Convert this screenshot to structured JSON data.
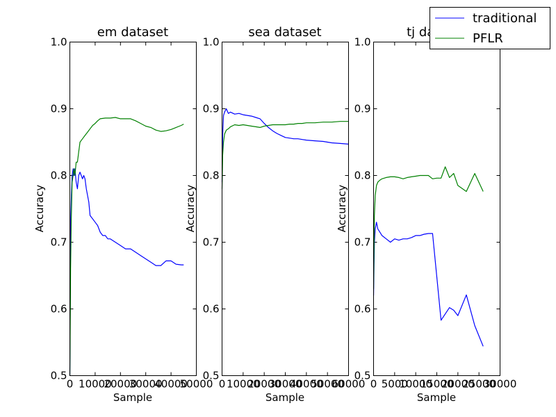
{
  "chart_data": [
    {
      "type": "line",
      "title": "em dataset",
      "xlabel": "Sample",
      "ylabel": "Accuracy",
      "xlim": [
        0,
        50000
      ],
      "ylim": [
        0.5,
        1.0
      ],
      "xticks": [
        0,
        10000,
        20000,
        30000,
        40000,
        50000
      ],
      "xtick_labels": [
        "0",
        "10000",
        "20000",
        "30000",
        "40000",
        "50000"
      ],
      "yticks": [
        0.5,
        0.6,
        0.7,
        0.8,
        0.9,
        1.0
      ],
      "ytick_labels": [
        "0.5",
        "0.6",
        "0.7",
        "0.8",
        "0.9",
        "1.0"
      ],
      "series": [
        {
          "name": "traditional",
          "color": "#0000ff",
          "x": [
            0,
            300,
            600,
            900,
            1300,
            1600,
            2000,
            2500,
            3000,
            3500,
            4000,
            4500,
            5000,
            5500,
            6000,
            6500,
            7000,
            7500,
            8000,
            9000,
            10000,
            11000,
            12000,
            13000,
            14000,
            15000,
            16000,
            18000,
            20000,
            22000,
            24000,
            26000,
            28000,
            30000,
            32000,
            34000,
            36000,
            38000,
            40000,
            42000,
            44000,
            45000
          ],
          "y": [
            0.5,
            0.73,
            0.77,
            0.8,
            0.81,
            0.8,
            0.81,
            0.79,
            0.78,
            0.8,
            0.805,
            0.8,
            0.795,
            0.8,
            0.795,
            0.78,
            0.77,
            0.76,
            0.74,
            0.735,
            0.73,
            0.725,
            0.715,
            0.71,
            0.71,
            0.705,
            0.705,
            0.7,
            0.695,
            0.69,
            0.69,
            0.685,
            0.68,
            0.675,
            0.67,
            0.665,
            0.665,
            0.672,
            0.672,
            0.667,
            0.666,
            0.666
          ]
        },
        {
          "name": "PFLR",
          "color": "#008000",
          "x": [
            0,
            300,
            600,
            900,
            1300,
            1600,
            2000,
            2500,
            3000,
            3500,
            4000,
            5000,
            6000,
            7000,
            8000,
            9000,
            10000,
            11000,
            12000,
            14000,
            16000,
            18000,
            20000,
            22000,
            24000,
            26000,
            28000,
            30000,
            32000,
            34000,
            36000,
            38000,
            40000,
            42000,
            44000,
            45000
          ],
          "y": [
            0.5,
            0.66,
            0.74,
            0.79,
            0.8,
            0.81,
            0.8,
            0.82,
            0.82,
            0.835,
            0.85,
            0.855,
            0.86,
            0.865,
            0.87,
            0.875,
            0.878,
            0.882,
            0.885,
            0.886,
            0.886,
            0.887,
            0.885,
            0.885,
            0.885,
            0.882,
            0.878,
            0.874,
            0.872,
            0.868,
            0.866,
            0.867,
            0.869,
            0.872,
            0.875,
            0.877
          ]
        }
      ]
    },
    {
      "type": "line",
      "title": "sea dataset",
      "xlabel": "Sample",
      "ylabel": "Accuracy",
      "xlim": [
        0,
        60000
      ],
      "ylim": [
        0.5,
        1.0
      ],
      "xticks": [
        0,
        10000,
        20000,
        30000,
        40000,
        50000,
        60000
      ],
      "xtick_labels": [
        "0",
        "10000",
        "20000",
        "30000",
        "40000",
        "50000",
        "60000"
      ],
      "yticks": [
        0.5,
        0.6,
        0.7,
        0.8,
        0.9,
        1.0
      ],
      "ytick_labels": [
        "0.5",
        "0.6",
        "0.7",
        "0.8",
        "0.9",
        "1.0"
      ],
      "series": [
        {
          "name": "traditional",
          "color": "#0000ff",
          "x": [
            0,
            300,
            700,
            1200,
            2000,
            3000,
            4000,
            6000,
            8000,
            10000,
            12000,
            14000,
            16000,
            18000,
            20000,
            22000,
            24000,
            26000,
            28000,
            30000,
            32000,
            34000,
            36000,
            38000,
            40000,
            44000,
            48000,
            52000,
            56000,
            60000
          ],
          "y": [
            0.79,
            0.86,
            0.89,
            0.895,
            0.9,
            0.893,
            0.895,
            0.892,
            0.893,
            0.891,
            0.89,
            0.889,
            0.887,
            0.885,
            0.878,
            0.872,
            0.867,
            0.863,
            0.86,
            0.857,
            0.856,
            0.855,
            0.855,
            0.854,
            0.853,
            0.852,
            0.851,
            0.849,
            0.848,
            0.847
          ]
        },
        {
          "name": "PFLR",
          "color": "#008000",
          "x": [
            0,
            300,
            700,
            1200,
            2000,
            3000,
            4000,
            6000,
            8000,
            10000,
            12000,
            14000,
            16000,
            18000,
            20000,
            22000,
            24000,
            26000,
            28000,
            30000,
            32000,
            34000,
            36000,
            38000,
            40000,
            44000,
            48000,
            52000,
            56000,
            60000
          ],
          "y": [
            0.78,
            0.83,
            0.85,
            0.862,
            0.868,
            0.87,
            0.873,
            0.876,
            0.875,
            0.876,
            0.875,
            0.874,
            0.873,
            0.872,
            0.874,
            0.875,
            0.876,
            0.876,
            0.876,
            0.876,
            0.877,
            0.877,
            0.878,
            0.878,
            0.879,
            0.879,
            0.88,
            0.88,
            0.881,
            0.881
          ]
        }
      ]
    },
    {
      "type": "line",
      "title": "tj dataset",
      "xlabel": "Sample",
      "ylabel": "Accuracy",
      "xlim": [
        0,
        30000
      ],
      "ylim": [
        0.5,
        1.0
      ],
      "xticks": [
        0,
        5000,
        10000,
        15000,
        20000,
        25000,
        30000
      ],
      "xtick_labels": [
        "0",
        "5000",
        "10000",
        "15000",
        "20000",
        "25000",
        "30000"
      ],
      "yticks": [
        0.5,
        0.6,
        0.7,
        0.8,
        0.9,
        1.0
      ],
      "ytick_labels": [
        "0.5",
        "0.6",
        "0.7",
        "0.8",
        "0.9",
        "1.0"
      ],
      "series": [
        {
          "name": "traditional",
          "color": "#0000ff",
          "x": [
            0,
            200,
            400,
            700,
            1000,
            1500,
            2000,
            3000,
            4000,
            5000,
            6000,
            7000,
            8000,
            9000,
            10000,
            11000,
            12000,
            13000,
            14000,
            16000,
            18000,
            19000,
            20000,
            22000,
            24000,
            26000
          ],
          "y": [
            0.62,
            0.7,
            0.72,
            0.73,
            0.72,
            0.715,
            0.71,
            0.705,
            0.7,
            0.705,
            0.703,
            0.705,
            0.705,
            0.707,
            0.71,
            0.71,
            0.712,
            0.713,
            0.713,
            0.583,
            0.602,
            0.598,
            0.59,
            0.621,
            0.575,
            0.544
          ]
        },
        {
          "name": "PFLR",
          "color": "#008000",
          "x": [
            0,
            200,
            400,
            700,
            1000,
            1500,
            2000,
            3000,
            4000,
            5000,
            6000,
            7000,
            8000,
            9000,
            10000,
            11000,
            12000,
            13000,
            14000,
            15000,
            16000,
            17000,
            18000,
            19000,
            20000,
            22000,
            24000,
            26000
          ],
          "y": [
            0.63,
            0.74,
            0.77,
            0.785,
            0.79,
            0.793,
            0.795,
            0.797,
            0.798,
            0.798,
            0.797,
            0.795,
            0.797,
            0.798,
            0.799,
            0.8,
            0.8,
            0.8,
            0.795,
            0.796,
            0.796,
            0.813,
            0.797,
            0.803,
            0.785,
            0.776,
            0.803,
            0.776
          ]
        }
      ]
    }
  ],
  "legend": {
    "items": [
      {
        "label": "traditional",
        "color": "#0000ff"
      },
      {
        "label": "PFLR",
        "color": "#008000"
      }
    ]
  }
}
